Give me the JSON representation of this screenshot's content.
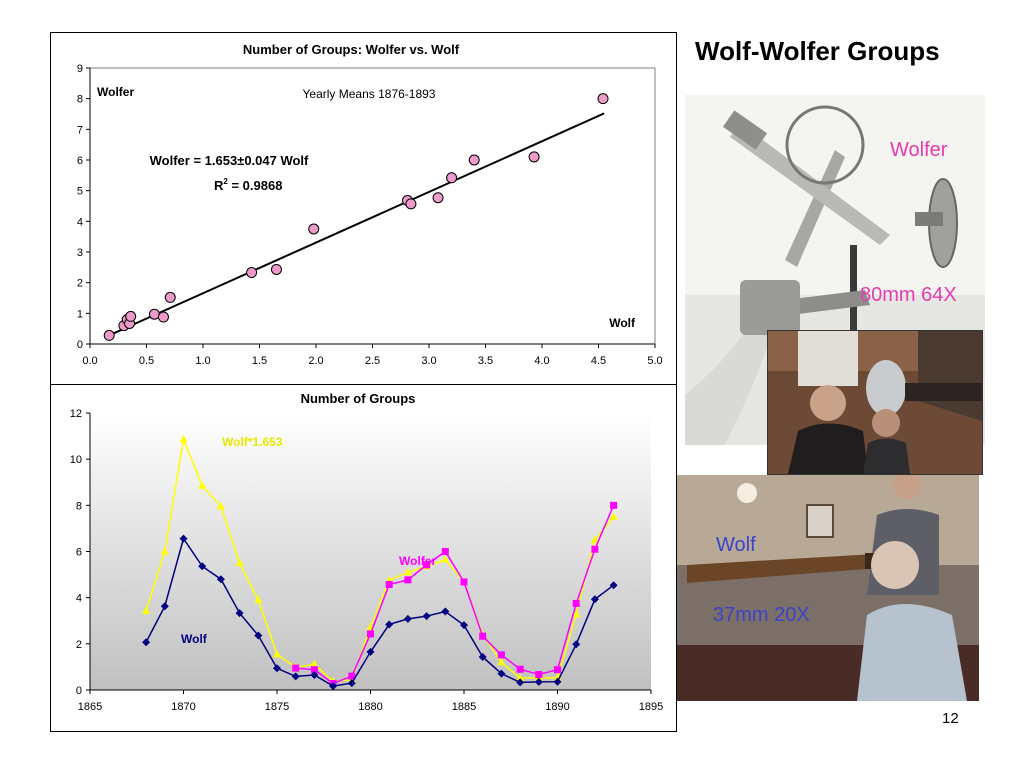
{
  "slide": {
    "title": "Wolf-Wolfer Groups",
    "page_number": "12"
  },
  "photos": {
    "wolfer_label": "Wolfer",
    "wolfer_spec": "80mm 64X",
    "wolf_label": "Wolf",
    "wolf_spec": "37mm 20X"
  },
  "colors": {
    "scatter_marker": "#ee9acb",
    "plot_area_bottom": "#c0c0c0",
    "wolf_series": "#000080",
    "wolfer_series": "#ff00ff",
    "scaled_series": "#ffff00",
    "wolfer_photo_label": "#e83ab0",
    "wolf_photo_label": "#3a44c8"
  },
  "chart_data": [
    {
      "type": "scatter",
      "title": "Number of Groups: Wolfer vs. Wolf",
      "subtitle": "Yearly Means 1876-1893",
      "xlabel": "Wolf",
      "ylabel": "Wolfer",
      "xlim": [
        0,
        5
      ],
      "ylim": [
        0,
        9
      ],
      "xticks": [
        "0.0",
        "0.5",
        "1.0",
        "1.5",
        "2.0",
        "2.5",
        "3.0",
        "3.5",
        "4.0",
        "4.5",
        "5.0"
      ],
      "yticks": [
        "0",
        "1",
        "2",
        "3",
        "4",
        "5",
        "6",
        "7",
        "8",
        "9"
      ],
      "grid": false,
      "fit_label": "Wolfer = 1.653±0.047 Wolf",
      "r2_label_prefix": "R",
      "r2_label_sup": "2",
      "r2_label_value": " = 0.9868",
      "fit_line": {
        "x": [
          0.18,
          4.55
        ],
        "y": [
          0.3,
          7.52
        ]
      },
      "points": [
        {
          "x": 0.17,
          "y": 0.28
        },
        {
          "x": 0.3,
          "y": 0.6
        },
        {
          "x": 0.33,
          "y": 0.8
        },
        {
          "x": 0.35,
          "y": 0.67
        },
        {
          "x": 0.36,
          "y": 0.9
        },
        {
          "x": 0.57,
          "y": 0.97
        },
        {
          "x": 0.65,
          "y": 0.88
        },
        {
          "x": 0.71,
          "y": 1.52
        },
        {
          "x": 1.43,
          "y": 2.33
        },
        {
          "x": 1.65,
          "y": 2.43
        },
        {
          "x": 1.98,
          "y": 3.75
        },
        {
          "x": 2.81,
          "y": 4.68
        },
        {
          "x": 2.84,
          "y": 4.57
        },
        {
          "x": 3.08,
          "y": 4.77
        },
        {
          "x": 3.2,
          "y": 5.42
        },
        {
          "x": 3.4,
          "y": 6.0
        },
        {
          "x": 3.93,
          "y": 6.1
        },
        {
          "x": 4.54,
          "y": 8.0
        }
      ]
    },
    {
      "type": "line",
      "title": "Number of Groups",
      "xlim": [
        1865,
        1895
      ],
      "ylim": [
        0,
        12
      ],
      "xticks": [
        "1865",
        "1870",
        "1875",
        "1880",
        "1885",
        "1890",
        "1895"
      ],
      "yticks": [
        "0",
        "2",
        "4",
        "6",
        "8",
        "10",
        "12"
      ],
      "grid": false,
      "series": [
        {
          "name": "Wolf*1.653",
          "marker": "triangle",
          "x": [
            1868,
            1869,
            1870,
            1871,
            1872,
            1873,
            1874,
            1875,
            1876,
            1877,
            1878,
            1879,
            1880,
            1881,
            1882,
            1883,
            1884,
            1885,
            1886,
            1887,
            1888,
            1889,
            1890,
            1891,
            1892,
            1893
          ],
          "y": [
            3.42,
            6.0,
            10.85,
            8.85,
            7.95,
            5.5,
            3.9,
            1.55,
            0.98,
            1.12,
            0.37,
            0.45,
            2.73,
            4.75,
            5.1,
            5.35,
            5.65,
            4.68,
            2.4,
            1.2,
            0.52,
            0.52,
            0.52,
            3.28,
            6.5,
            7.5
          ]
        },
        {
          "name": "Wolfer",
          "marker": "square",
          "x": [
            1876,
            1877,
            1878,
            1879,
            1880,
            1881,
            1882,
            1883,
            1884,
            1885,
            1886,
            1887,
            1888,
            1889,
            1890,
            1891,
            1892,
            1893
          ],
          "y": [
            0.95,
            0.88,
            0.28,
            0.6,
            2.43,
            4.57,
            4.77,
            5.42,
            6.0,
            4.68,
            2.33,
            1.52,
            0.9,
            0.67,
            0.88,
            3.75,
            6.1,
            8.0
          ]
        },
        {
          "name": "Wolf",
          "marker": "diamond",
          "x": [
            1868,
            1869,
            1870,
            1871,
            1872,
            1873,
            1874,
            1875,
            1876,
            1877,
            1878,
            1879,
            1880,
            1881,
            1882,
            1883,
            1884,
            1885,
            1886,
            1887,
            1888,
            1889,
            1890,
            1891,
            1892,
            1893
          ],
          "y": [
            2.07,
            3.63,
            6.56,
            5.36,
            4.8,
            3.33,
            2.36,
            0.94,
            0.59,
            0.65,
            0.17,
            0.3,
            1.65,
            2.84,
            3.08,
            3.2,
            3.4,
            2.81,
            1.43,
            0.71,
            0.33,
            0.35,
            0.36,
            1.98,
            3.93,
            4.54
          ]
        }
      ]
    }
  ]
}
